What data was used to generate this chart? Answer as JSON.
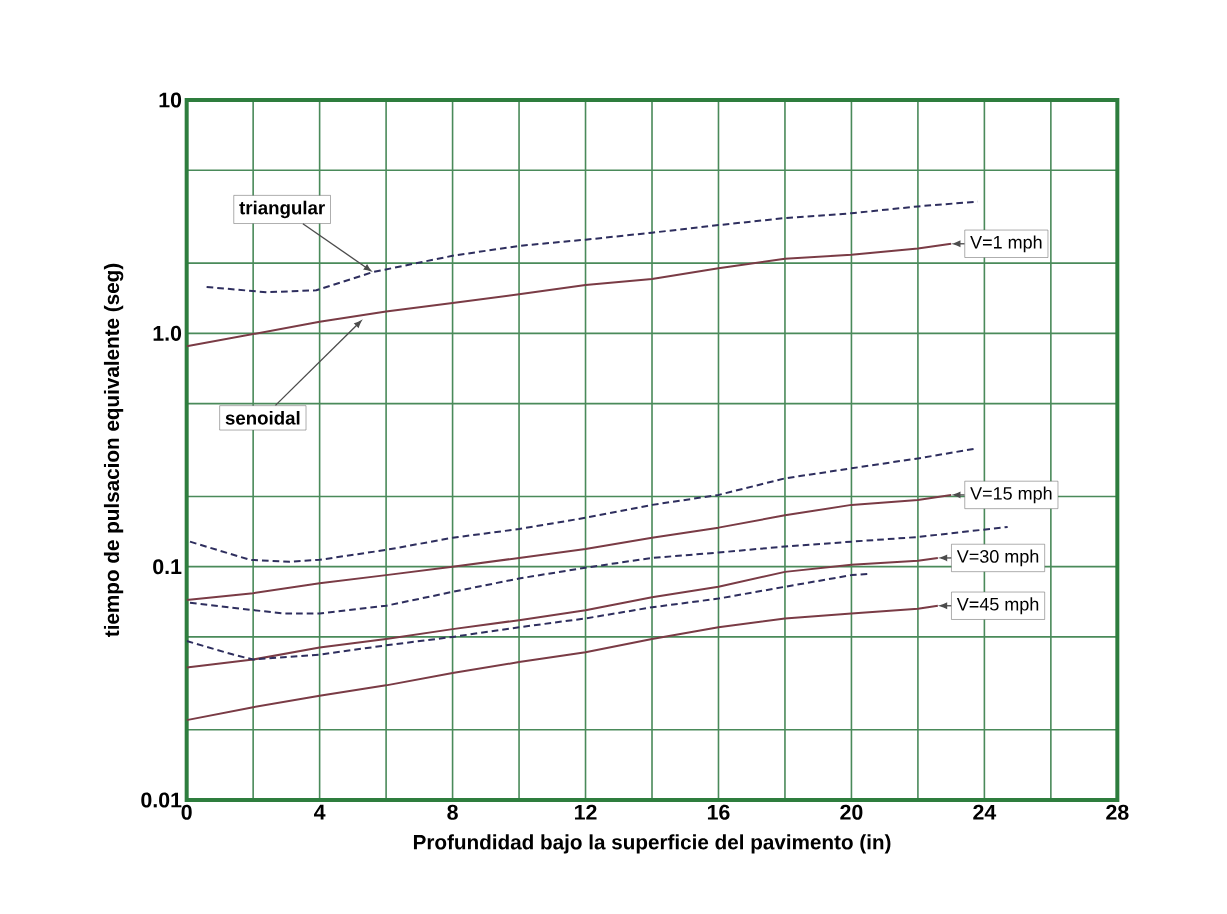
{
  "chart_data": {
    "type": "line",
    "xlabel": "Profundidad bajo la superficie del pavimento (in)",
    "ylabel": "tiempo de pulsacion equivalente (seg)",
    "xlim": [
      0,
      28
    ],
    "ylim": [
      0.01,
      10
    ],
    "log": "y",
    "grid": true,
    "marker": "none",
    "xticks": [
      0,
      {
        "value": 2,
        "label": null
      },
      4,
      {
        "value": 6,
        "label": null
      },
      8,
      {
        "value": 10,
        "label": null
      },
      12,
      {
        "value": 14,
        "label": null
      },
      16,
      {
        "value": 18,
        "label": null
      },
      20,
      {
        "value": 22,
        "label": null
      },
      24,
      {
        "value": 26,
        "label": null
      },
      28
    ],
    "yticks": [
      0.01,
      {
        "value": 0.02,
        "label": null
      },
      {
        "value": 0.05,
        "label": null
      },
      0.1,
      {
        "value": 0.2,
        "label": null
      },
      {
        "value": 0.5,
        "label": null
      },
      {
        "value": 1,
        "label": "1.0"
      },
      {
        "value": 2,
        "label": null
      },
      {
        "value": 5,
        "label": null
      },
      10
    ],
    "series": [
      {
        "color": "#2e2e5e",
        "line_style": "dashed",
        "x": [
          0.6,
          2.4,
          3.9,
          5.6,
          8,
          10,
          12,
          14,
          16,
          18,
          20,
          22,
          23.8
        ],
        "values": [
          1.58,
          1.5,
          1.53,
          1.83,
          2.15,
          2.37,
          2.52,
          2.7,
          2.91,
          3.12,
          3.27,
          3.5,
          3.67
        ]
      },
      {
        "color": "#7a3b45",
        "line_style": "solid",
        "x": [
          0,
          4,
          6,
          8,
          10,
          12,
          14,
          16,
          18,
          20,
          22,
          23
        ],
        "values": [
          0.88,
          1.12,
          1.24,
          1.35,
          1.47,
          1.61,
          1.71,
          1.9,
          2.09,
          2.17,
          2.31,
          2.42
        ]
      },
      {
        "color": "#2e2e5e",
        "line_style": "dashed",
        "x": [
          0.1,
          1.9,
          3.1,
          4,
          6,
          8,
          10,
          12,
          14,
          16,
          18,
          20,
          22,
          23.7
        ],
        "values": [
          0.128,
          0.107,
          0.105,
          0.107,
          0.118,
          0.133,
          0.145,
          0.162,
          0.184,
          0.203,
          0.239,
          0.264,
          0.291,
          0.32
        ]
      },
      {
        "color": "#7a3b45",
        "line_style": "solid",
        "x": [
          0,
          2,
          4,
          6,
          8,
          10,
          12,
          14,
          16,
          18,
          20,
          22,
          23
        ],
        "values": [
          0.072,
          0.077,
          0.085,
          0.092,
          0.1,
          0.109,
          0.119,
          0.133,
          0.147,
          0.166,
          0.184,
          0.193,
          0.203
        ]
      },
      {
        "color": "#2e2e5e",
        "line_style": "dashed",
        "x": [
          0.1,
          2.9,
          4,
          6,
          8,
          10,
          12,
          14,
          16,
          18,
          20,
          22,
          24.7
        ],
        "values": [
          0.07,
          0.063,
          0.063,
          0.068,
          0.078,
          0.089,
          0.099,
          0.109,
          0.115,
          0.122,
          0.128,
          0.134,
          0.148
        ]
      },
      {
        "color": "#7a3b45",
        "line_style": "solid",
        "x": [
          0,
          2,
          4,
          6,
          8,
          10,
          12,
          14,
          16,
          18,
          20,
          22,
          22.6
        ],
        "values": [
          0.037,
          0.04,
          0.045,
          0.049,
          0.054,
          0.059,
          0.065,
          0.074,
          0.082,
          0.095,
          0.102,
          0.106,
          0.109
        ]
      },
      {
        "color": "#2e2e5e",
        "line_style": "dashed",
        "x": [
          0,
          1.4,
          2,
          4,
          6,
          8,
          10,
          12,
          14,
          16,
          18,
          20,
          20.5
        ],
        "values": [
          0.048,
          0.042,
          0.04,
          0.042,
          0.046,
          0.05,
          0.055,
          0.06,
          0.067,
          0.073,
          0.082,
          0.092,
          0.093
        ]
      },
      {
        "color": "#7a3b45",
        "line_style": "solid",
        "x": [
          0,
          2,
          4,
          6,
          8,
          10,
          12,
          14,
          16,
          18,
          20,
          22,
          22.6
        ],
        "values": [
          0.022,
          0.025,
          0.028,
          0.031,
          0.035,
          0.039,
          0.043,
          0.049,
          0.055,
          0.06,
          0.063,
          0.066,
          0.068
        ]
      }
    ],
    "annotations": [
      {
        "text": "triangular",
        "x": 5.6,
        "y": 1.83
      },
      {
        "text": "senoidal",
        "x": 5.3,
        "y": 1.15
      },
      {
        "text": "V=1 mph",
        "x": 23,
        "y": 2.42
      },
      {
        "text": "V=15 mph",
        "x": 23,
        "y": 0.203
      },
      {
        "text": "V=30 mph",
        "x": 22.6,
        "y": 0.109
      },
      {
        "text": "V=45 mph",
        "x": 22.6,
        "y": 0.068
      }
    ]
  }
}
